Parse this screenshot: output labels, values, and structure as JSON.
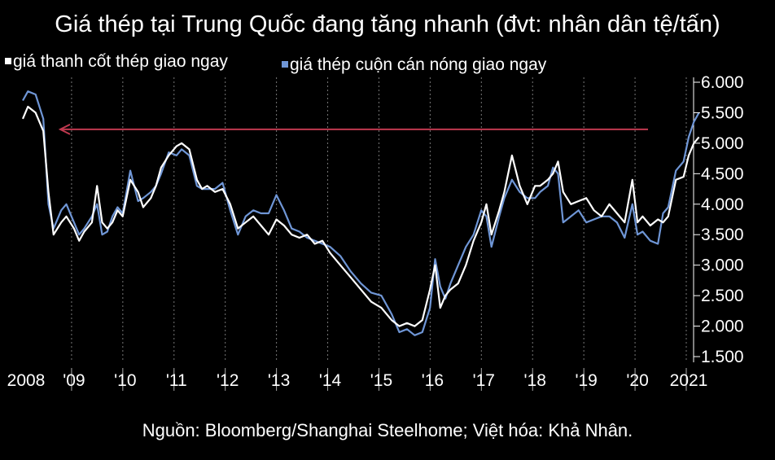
{
  "title": "Giá thép tại Trung Quốc đang tăng nhanh (đvt: nhân dân tệ/tấn)",
  "source": "Nguồn: Bloomberg/Shanghai Steelhome; Việt hóa: Khả Nhân.",
  "colors": {
    "background": "#000000",
    "rebar": "#ffffff",
    "hrc": "#6f96d6",
    "arrow": "#c0394f",
    "grid": "#555555"
  },
  "chart_data": {
    "type": "line",
    "title": "Giá thép tại Trung Quốc đang tăng nhanh (đvt: nhân dân tệ/tấn)",
    "ylim": [
      1500,
      6100
    ],
    "xlim": [
      2008.0,
      2021.55
    ],
    "ylabel": "",
    "xlabel": "",
    "y_ticks": [
      "1.500",
      "2.000",
      "2.500",
      "3.000",
      "3.500",
      "4.000",
      "4.500",
      "5.000",
      "5.500",
      "6.000"
    ],
    "y_tick_values": [
      1500,
      2000,
      2500,
      3000,
      3500,
      4000,
      4500,
      5000,
      5500,
      6000
    ],
    "x_ticks": [
      "2008",
      "'09",
      "'10",
      "'11",
      "'12",
      "'13",
      "'14",
      "'15",
      "'16",
      "'17",
      "'18",
      "'19",
      "'20",
      "2021"
    ],
    "x_tick_positions": [
      2008,
      2009,
      2010,
      2011,
      2012,
      2013,
      2014,
      2015,
      2016,
      2017,
      2018,
      2019,
      2020,
      2021
    ],
    "grid": "vertical dotted",
    "legend_position": "top-left",
    "annotation": "red arrow pointing left at about 5.200",
    "series": [
      {
        "name": "giá thanh cốt thép giao ngay",
        "color": "#ffffff",
        "x": [
          2008.0,
          2008.1,
          2008.25,
          2008.4,
          2008.5,
          2008.6,
          2008.75,
          2008.85,
          2009.0,
          2009.1,
          2009.2,
          2009.35,
          2009.45,
          2009.55,
          2009.65,
          2009.75,
          2009.85,
          2009.95,
          2010.1,
          2010.25,
          2010.35,
          2010.5,
          2010.6,
          2010.7,
          2010.85,
          2011.0,
          2011.1,
          2011.25,
          2011.4,
          2011.5,
          2011.6,
          2011.75,
          2011.9,
          2012.05,
          2012.2,
          2012.35,
          2012.5,
          2012.65,
          2012.8,
          2012.95,
          2013.1,
          2013.25,
          2013.4,
          2013.55,
          2013.7,
          2013.85,
          2014.0,
          2014.2,
          2014.4,
          2014.6,
          2014.8,
          2015.0,
          2015.2,
          2015.35,
          2015.5,
          2015.65,
          2015.8,
          2015.95,
          2016.05,
          2016.15,
          2016.25,
          2016.35,
          2016.5,
          2016.65,
          2016.8,
          2016.95,
          2017.05,
          2017.15,
          2017.3,
          2017.4,
          2017.55,
          2017.7,
          2017.85,
          2018.0,
          2018.1,
          2018.25,
          2018.35,
          2018.45,
          2018.55,
          2018.7,
          2018.85,
          2019.0,
          2019.15,
          2019.3,
          2019.45,
          2019.6,
          2019.75,
          2019.9,
          2020.0,
          2020.1,
          2020.25,
          2020.4,
          2020.5,
          2020.6,
          2020.75,
          2020.9,
          2021.0,
          2021.1,
          2021.2
        ],
        "values": [
          5400,
          5600,
          5500,
          5200,
          4200,
          3500,
          3700,
          3800,
          3600,
          3400,
          3550,
          3700,
          4300,
          3700,
          3600,
          3700,
          3900,
          3800,
          4400,
          4200,
          3950,
          4100,
          4300,
          4600,
          4800,
          4950,
          5000,
          4900,
          4400,
          4250,
          4300,
          4200,
          4250,
          4000,
          3600,
          3700,
          3800,
          3650,
          3500,
          3750,
          3650,
          3500,
          3450,
          3500,
          3350,
          3400,
          3200,
          3000,
          2800,
          2600,
          2400,
          2300,
          2100,
          2000,
          2050,
          2000,
          2100,
          2600,
          3000,
          2300,
          2500,
          2600,
          2700,
          3000,
          3400,
          3700,
          4000,
          3500,
          3900,
          4200,
          4800,
          4300,
          4000,
          4300,
          4300,
          4400,
          4500,
          4700,
          4200,
          4000,
          4050,
          4100,
          3900,
          3800,
          4000,
          3850,
          3700,
          4400,
          3700,
          3800,
          3650,
          3750,
          3700,
          3800,
          4400,
          4450,
          4800,
          5000,
          5100
        ]
      },
      {
        "name": "giá thép cuộn cán nóng giao ngay",
        "color": "#6f96d6",
        "x": [
          2008.0,
          2008.1,
          2008.25,
          2008.4,
          2008.5,
          2008.6,
          2008.75,
          2008.85,
          2009.0,
          2009.1,
          2009.2,
          2009.35,
          2009.45,
          2009.55,
          2009.65,
          2009.75,
          2009.85,
          2009.95,
          2010.1,
          2010.25,
          2010.35,
          2010.5,
          2010.6,
          2010.7,
          2010.85,
          2011.0,
          2011.1,
          2011.25,
          2011.4,
          2011.5,
          2011.6,
          2011.75,
          2011.9,
          2012.05,
          2012.2,
          2012.35,
          2012.5,
          2012.65,
          2012.8,
          2012.95,
          2013.1,
          2013.25,
          2013.4,
          2013.55,
          2013.7,
          2013.85,
          2014.0,
          2014.2,
          2014.4,
          2014.6,
          2014.8,
          2015.0,
          2015.2,
          2015.35,
          2015.5,
          2015.65,
          2015.8,
          2015.95,
          2016.05,
          2016.15,
          2016.25,
          2016.35,
          2016.5,
          2016.65,
          2016.8,
          2016.95,
          2017.05,
          2017.15,
          2017.3,
          2017.4,
          2017.55,
          2017.7,
          2017.85,
          2018.0,
          2018.1,
          2018.25,
          2018.35,
          2018.45,
          2018.55,
          2018.7,
          2018.85,
          2019.0,
          2019.15,
          2019.3,
          2019.45,
          2019.6,
          2019.75,
          2019.9,
          2020.0,
          2020.1,
          2020.25,
          2020.4,
          2020.5,
          2020.6,
          2020.75,
          2020.9,
          2021.0,
          2021.1,
          2021.2
        ],
        "values": [
          5700,
          5850,
          5800,
          5400,
          4000,
          3600,
          3900,
          4000,
          3700,
          3500,
          3600,
          3800,
          4000,
          3500,
          3550,
          3800,
          3950,
          3850,
          4550,
          4050,
          4100,
          4200,
          4300,
          4500,
          4850,
          4800,
          4900,
          4800,
          4300,
          4250,
          4250,
          4250,
          4350,
          3900,
          3500,
          3800,
          3900,
          3850,
          3850,
          4150,
          3900,
          3600,
          3550,
          3450,
          3400,
          3350,
          3300,
          3150,
          2900,
          2700,
          2550,
          2500,
          2200,
          1900,
          1950,
          1850,
          1900,
          2300,
          3100,
          2650,
          2450,
          2700,
          3000,
          3300,
          3500,
          3900,
          3800,
          3300,
          3800,
          4100,
          4400,
          4200,
          4100,
          4100,
          4200,
          4300,
          4600,
          4500,
          3700,
          3800,
          3900,
          3700,
          3750,
          3800,
          3800,
          3700,
          3450,
          4000,
          3500,
          3550,
          3400,
          3350,
          3850,
          3950,
          4550,
          4700,
          5100,
          5350,
          5500
        ]
      }
    ]
  }
}
